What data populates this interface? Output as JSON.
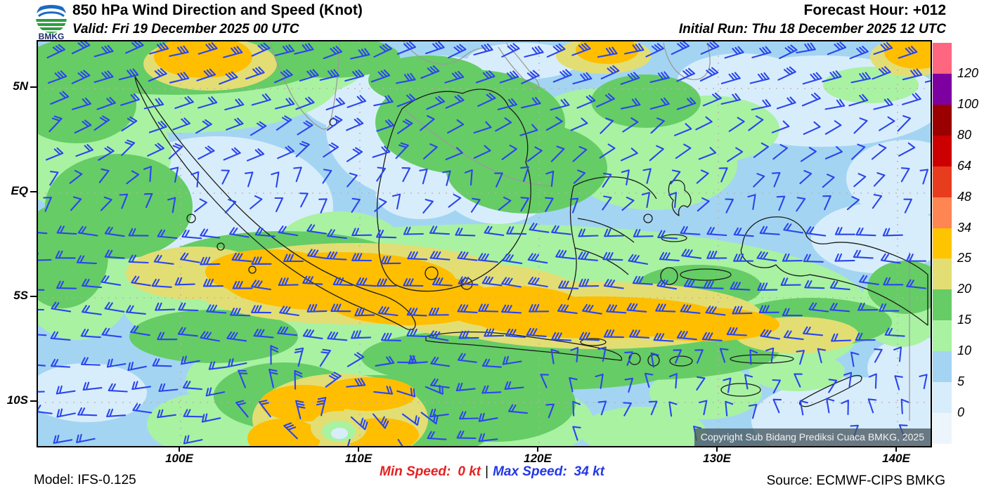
{
  "header": {
    "title": "850 hPa Wind Direction and Speed (Knot)",
    "valid": "Valid: Fri 19 December 2025 00 UTC",
    "forecast_hour": "Forecast Hour: +012",
    "initial_run": "Initial Run: Thu 18 December 2025 12 UTC",
    "logo_text": "BMKG"
  },
  "map": {
    "copyright": "Copyright Sub Bidang Prediksi Cuaca BMKG, 2025",
    "x_ticks": [
      {
        "label": "100E",
        "f": 0.1598
      },
      {
        "label": "110E",
        "f": 0.3606
      },
      {
        "label": "120E",
        "f": 0.5614
      },
      {
        "label": "130E",
        "f": 0.7622
      },
      {
        "label": "140E",
        "f": 0.963
      }
    ],
    "y_ticks": [
      {
        "label": "5N",
        "f": 0.1163
      },
      {
        "label": "EQ",
        "f": 0.375
      },
      {
        "label": "5S",
        "f": 0.6337
      },
      {
        "label": "10S",
        "f": 0.8924
      }
    ]
  },
  "colorbar": {
    "segments": [
      {
        "color": "#ff6680",
        "label": "120"
      },
      {
        "color": "#7d00a0",
        "label": "100"
      },
      {
        "color": "#9b0000",
        "label": "80"
      },
      {
        "color": "#cc0000",
        "label": "64"
      },
      {
        "color": "#e83c1e",
        "label": "48"
      },
      {
        "color": "#ff8552",
        "label": "34"
      },
      {
        "color": "#ffc400",
        "label": "25"
      },
      {
        "color": "#e2de74",
        "label": "20"
      },
      {
        "color": "#66cc66",
        "label": "15"
      },
      {
        "color": "#a9f2a2",
        "label": "10"
      },
      {
        "color": "#a3d5f2",
        "label": "5"
      },
      {
        "color": "#d8edfb",
        "label": "0"
      },
      {
        "color": "#edf5fc",
        "label": ""
      }
    ]
  },
  "footer": {
    "model": "Model: IFS-0.125",
    "min_label": "Min Speed:",
    "min_value": "0 kt",
    "separator": "|",
    "max_label": "Max Speed:",
    "max_value": "34 kt",
    "source": "Source: ECMWF-CIPS BMKG"
  },
  "colors": {
    "wind_barb": "#2a46ec",
    "land_outline": "#1b1b1b",
    "foreign_outline": "#9a9a9a",
    "min_text": "#e62020",
    "max_text": "#2238e6"
  },
  "chart_data": {
    "type": "heatmap",
    "title": "850 hPa Wind Direction and Speed (Knot)",
    "units": "knot",
    "legend_values": [
      0,
      5,
      10,
      15,
      20,
      25,
      34,
      48,
      64,
      80,
      100,
      120
    ],
    "legend_colors_low_to_high": [
      "#edf5fc",
      "#d8edfb",
      "#a3d5f2",
      "#a9f2a2",
      "#66cc66",
      "#e2de74",
      "#ffc400",
      "#ff8552",
      "#e83c1e",
      "#cc0000",
      "#9b0000",
      "#7d00a0",
      "#ff6680"
    ],
    "x_axis_labels": [
      "100E",
      "110E",
      "120E",
      "130E",
      "140E"
    ],
    "y_axis_labels": [
      "5N",
      "EQ",
      "5S",
      "10S"
    ],
    "min_speed_kt": 0,
    "max_speed_kt": 34
  }
}
